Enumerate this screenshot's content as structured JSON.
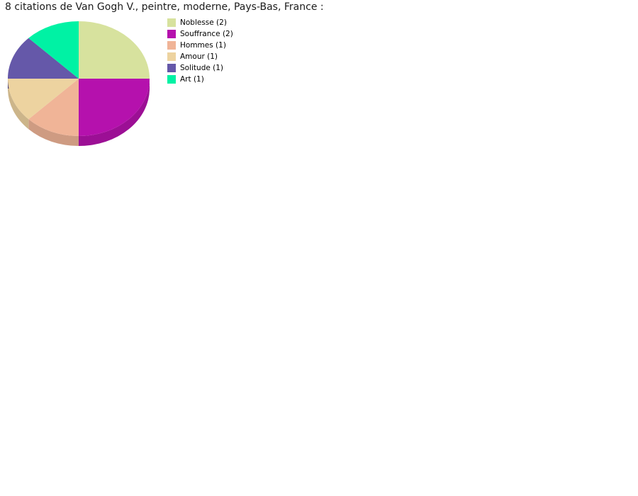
{
  "chart_data": {
    "type": "pie",
    "style": "3d",
    "title": "8 citations de Van Gogh V., peintre, moderne, Pays-Bas, France :",
    "total": 8,
    "start_angle_deg": -90,
    "direction": "clockwise",
    "legend_position": "right",
    "background_color": "#ffffff",
    "slices": [
      {
        "label": "Noblesse",
        "value": 2,
        "color": "#d7e29e"
      },
      {
        "label": "Souffrance",
        "value": 2,
        "color": "#b511ad"
      },
      {
        "label": "Hommes",
        "value": 1,
        "color": "#f0b497"
      },
      {
        "label": "Amour",
        "value": 1,
        "color": "#edd3a0"
      },
      {
        "label": "Solitude",
        "value": 1,
        "color": "#6558a9"
      },
      {
        "label": "Art",
        "value": 1,
        "color": "#00f2a4"
      }
    ],
    "legend_labels": [
      "Noblesse (2)",
      "Souffrance (2)",
      "Hommes (1)",
      "Amour (1)",
      "Solitude (1)",
      "Art (1)"
    ]
  }
}
